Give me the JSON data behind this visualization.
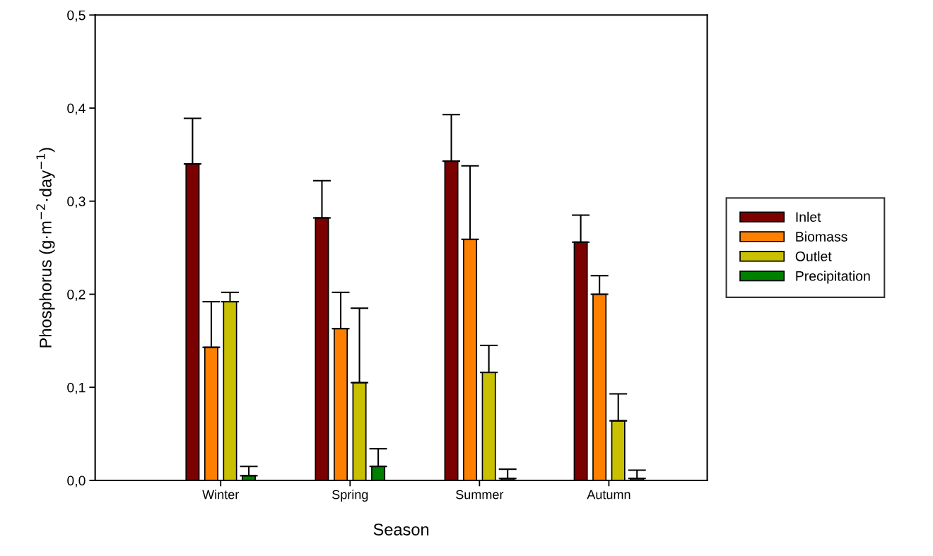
{
  "chart_data": {
    "type": "bar",
    "xlabel": "Season",
    "ylabel": "Phosphorus (g·m$^{−2}$·day$^{−1}$)",
    "categories": [
      "Winter",
      "Spring",
      "Summer",
      "Autumn"
    ],
    "series": [
      {
        "name": "Inlet",
        "color": "#7b0000",
        "values": [
          0.34,
          0.282,
          0.343,
          0.256
        ],
        "errors": [
          [
            0.34,
            0.389
          ],
          [
            0.282,
            0.322
          ],
          [
            0.343,
            0.393
          ],
          [
            0.256,
            0.285
          ]
        ]
      },
      {
        "name": "Biomass",
        "color": "#ff8000",
        "values": [
          0.143,
          0.163,
          0.259,
          0.2
        ],
        "errors": [
          [
            0.143,
            0.192
          ],
          [
            0.163,
            0.202
          ],
          [
            0.259,
            0.338
          ],
          [
            0.2,
            0.22
          ]
        ]
      },
      {
        "name": "Outlet",
        "color": "#c8c000",
        "values": [
          0.192,
          0.105,
          0.116,
          0.064
        ],
        "errors": [
          [
            0.192,
            0.202
          ],
          [
            0.105,
            0.185
          ],
          [
            0.116,
            0.145
          ],
          [
            0.064,
            0.093
          ]
        ]
      },
      {
        "name": "Precipitation",
        "color": "#008000",
        "values": [
          0.005,
          0.015,
          0.002,
          0.002
        ],
        "errors": [
          [
            0.005,
            0.015
          ],
          [
            0.015,
            0.034
          ],
          [
            0.002,
            0.012
          ],
          [
            0.002,
            0.011
          ]
        ]
      }
    ],
    "ylim": [
      0,
      0.5
    ],
    "yticks": [
      {
        "value": 0,
        "label": "0,0"
      },
      {
        "value": 0.1,
        "label": "0,1"
      },
      {
        "value": 0.2,
        "label": "0,2"
      },
      {
        "value": 0.3,
        "label": "0,3"
      },
      {
        "value": 0.4,
        "label": "0,4"
      },
      {
        "value": 0.5,
        "label": "0,5"
      }
    ],
    "grid": false,
    "legend": "right"
  }
}
